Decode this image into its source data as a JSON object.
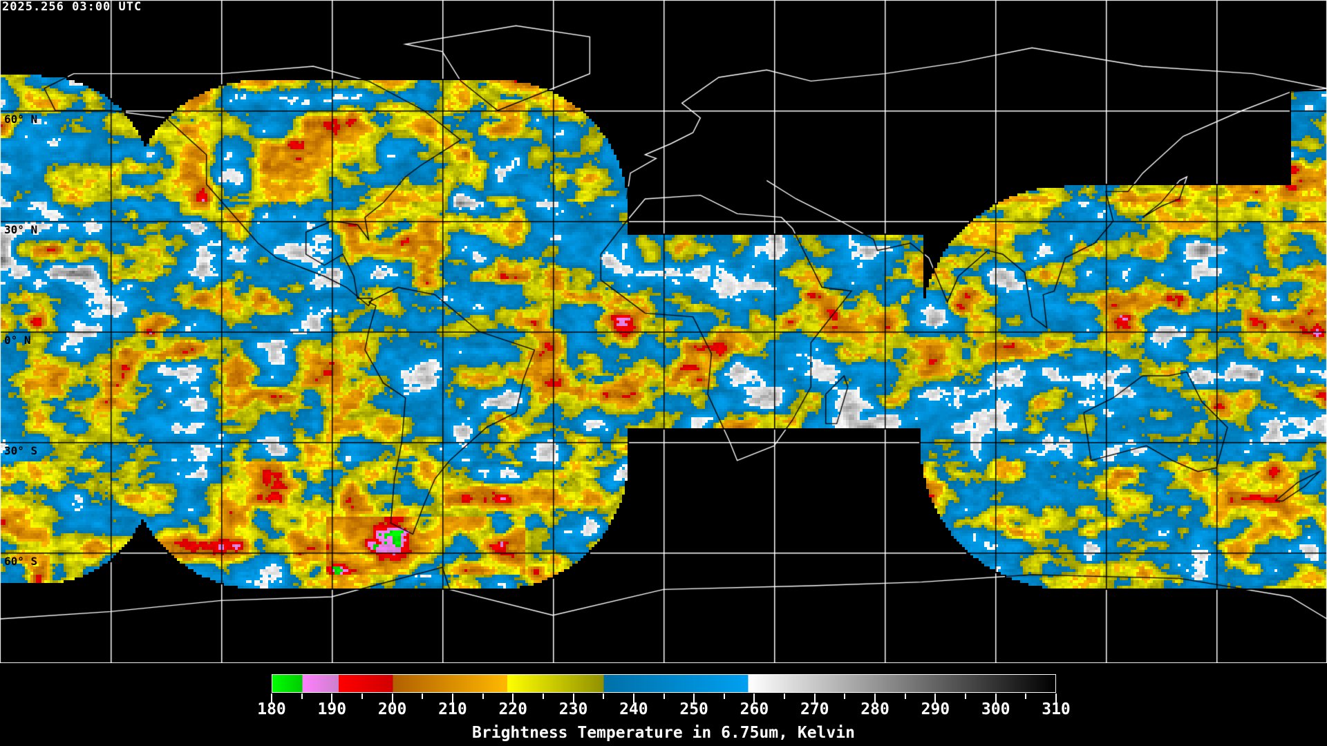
{
  "timestamp": "2025.256 03:00 UTC",
  "map": {
    "projection": "equirectangular",
    "lon_range": [
      -180,
      180
    ],
    "lat_range": [
      -90,
      90
    ],
    "grid_spacing_deg": 30,
    "grid_color": "#ffffff",
    "lat_labels": [
      "60° N",
      "30° N",
      "0° N",
      "30° S",
      "60° S"
    ]
  },
  "colorbar": {
    "title": "Brightness Temperature in 6.75um, Kelvin",
    "min": 180,
    "max": 310,
    "tick_labels": [
      "180",
      "190",
      "200",
      "210",
      "220",
      "230",
      "240",
      "250",
      "260",
      "270",
      "280",
      "290",
      "300",
      "310"
    ],
    "segments": [
      {
        "from": 180,
        "to": 185,
        "colors": [
          "#00ff00",
          "#00cc00"
        ]
      },
      {
        "from": 185,
        "to": 191,
        "colors": [
          "#ff80ff",
          "#cc80cc"
        ]
      },
      {
        "from": 191,
        "to": 200,
        "colors": [
          "#ff0000",
          "#d00000"
        ]
      },
      {
        "from": 200,
        "to": 219,
        "colors": [
          "#b06000",
          "#ffb800"
        ]
      },
      {
        "from": 219,
        "to": 235,
        "colors": [
          "#ffff00",
          "#909000"
        ]
      },
      {
        "from": 235,
        "to": 259,
        "colors": [
          "#0070a8",
          "#00a0f0"
        ]
      },
      {
        "from": 259,
        "to": 310,
        "colors": [
          "#ffffff",
          "#000000"
        ]
      }
    ]
  }
}
